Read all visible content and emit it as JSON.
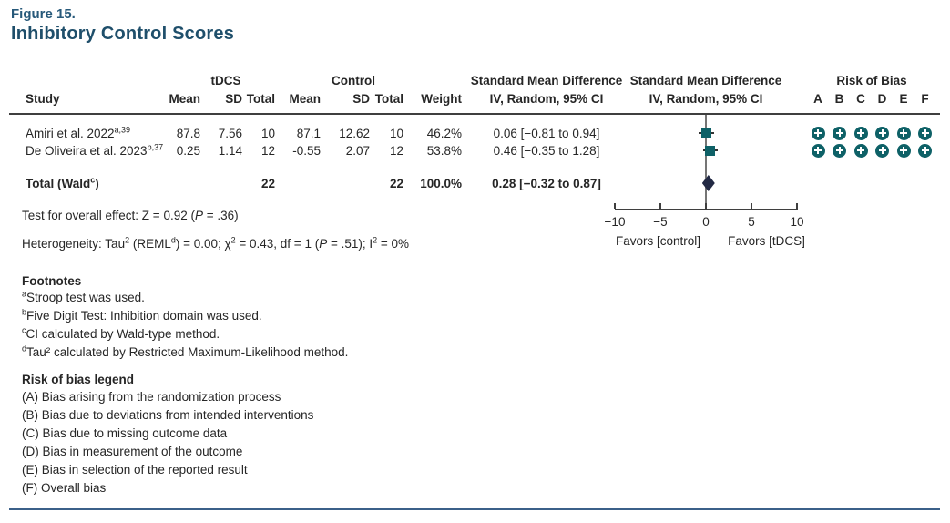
{
  "figure": {
    "label": "Figure 15.",
    "title": "Inhibitory Control Scores"
  },
  "table": {
    "groups": {
      "tdcs": "tDCS",
      "control": "Control",
      "smd_text": "Standard Mean Difference",
      "smd_plot": "Standard Mean Difference",
      "rob": "Risk of Bias"
    },
    "headers": {
      "study": "Study",
      "mean1": "Mean",
      "sd1": "SD",
      "total1": "Total",
      "mean2": "Mean",
      "sd2": "SD",
      "total2": "Total",
      "weight": "Weight",
      "iv1": "IV, Random, 95% CI",
      "iv2": "IV, Random, 95% CI",
      "rob_letters": [
        "A",
        "B",
        "C",
        "D",
        "E",
        "F"
      ]
    },
    "rows": [
      {
        "study": "Amiri et al. 2022",
        "study_sup": "a,39",
        "tdcs_mean": "87.8",
        "tdcs_sd": "7.56",
        "tdcs_total": "10",
        "control_mean": "87.1",
        "control_sd": "12.62",
        "control_total": "10",
        "weight": "46.2%",
        "smd_ci": "0.06 [−0.81 to 0.94]",
        "risk_of_bias": [
          "plus",
          "plus",
          "plus",
          "plus",
          "plus",
          "plus"
        ]
      },
      {
        "study": "De Oliveira et al. 2023",
        "study_sup": "b,37",
        "tdcs_mean": "0.25",
        "tdcs_sd": "1.14",
        "tdcs_total": "12",
        "control_mean": "-0.55",
        "control_sd": "2.07",
        "control_total": "12",
        "weight": "53.8%",
        "smd_ci": "0.46 [−0.35 to 1.28]",
        "risk_of_bias": [
          "plus",
          "plus",
          "plus",
          "plus",
          "plus",
          "plus"
        ]
      }
    ],
    "total": {
      "label": "Total (Wald",
      "label_sup": "c",
      "label_close": ")",
      "tdcs_total": "22",
      "control_total": "22",
      "weight": "100.0%",
      "smd_ci": "0.28 [−0.32 to 0.87]"
    }
  },
  "stats": {
    "overall_effect_parts": [
      {
        "t": "Test for overall effect: Z = 0.92 ("
      },
      {
        "t": "P",
        "italic": true
      },
      {
        "t": " = .36)"
      }
    ],
    "heterogeneity_parts": [
      {
        "t": "Heterogeneity: Tau"
      },
      {
        "t": "2",
        "sup": true
      },
      {
        "t": " (REML"
      },
      {
        "t": "d",
        "sup": true
      },
      {
        "t": ") = 0.00; χ"
      },
      {
        "t": "2",
        "sup": true
      },
      {
        "t": " = 0.43, df = 1 ("
      },
      {
        "t": "P",
        "italic": true
      },
      {
        "t": " = .51); I"
      },
      {
        "t": "2",
        "sup": true
      },
      {
        "t": " = 0%"
      }
    ]
  },
  "axis": {
    "favors_left": "Favors [control]",
    "favors_right": "Favors [tDCS]"
  },
  "footnotes": {
    "title": "Footnotes",
    "items": [
      {
        "sup": "a",
        "text": "Stroop test was used."
      },
      {
        "sup": "b",
        "text": "Five Digit Test: Inhibition domain was used."
      },
      {
        "sup": "c",
        "text": "CI calculated by Wald-type method."
      },
      {
        "sup": "d",
        "text": "Tau² calculated by Restricted Maximum-Likelihood method."
      }
    ]
  },
  "rob_legend": {
    "title": "Risk of bias legend",
    "items": [
      "(A) Bias arising from the randomization process",
      "(B) Bias due to deviations from intended interventions",
      "(C) Bias due to missing outcome data",
      "(D) Bias in measurement of the outcome",
      "(E) Bias in selection of the reported result",
      "(F) Overall bias"
    ]
  },
  "chart_data": {
    "type": "scatter",
    "subtype": "forest_plot",
    "title": "Inhibitory Control Scores",
    "effect_measure": "Standard Mean Difference, IV, Random, 95% CI",
    "x_axis": {
      "range": [
        -10,
        10
      ],
      "ticks": [
        -10,
        -5,
        0,
        5,
        10
      ],
      "tick_labels": [
        "−10",
        "−5",
        "0",
        "5",
        "10"
      ],
      "favors_left": "Favors [control]",
      "favors_right": "Favors [tDCS]",
      "zero_line": 0
    },
    "studies": [
      {
        "name": "Amiri et al. 2022",
        "smd": 0.06,
        "ci_low": -0.81,
        "ci_high": 0.94,
        "weight_pct": 46.2,
        "marker": "square"
      },
      {
        "name": "De Oliveira et al. 2023",
        "smd": 0.46,
        "ci_low": -0.35,
        "ci_high": 1.28,
        "weight_pct": 53.8,
        "marker": "square"
      }
    ],
    "total": {
      "name": "Total (Wald)",
      "smd": 0.28,
      "ci_low": -0.32,
      "ci_high": 0.87,
      "weight_pct": 100.0,
      "marker": "diamond"
    }
  },
  "colors": {
    "teal": "#0e6167",
    "navy": "#222944",
    "title": "#27597a",
    "title_dark": "#1f4f6b",
    "rule_dark": "#3f3f3f",
    "rule_blue": "#3b6089",
    "axis": "#3f3f3f",
    "zero_line": "#757575",
    "text": "#262626"
  }
}
